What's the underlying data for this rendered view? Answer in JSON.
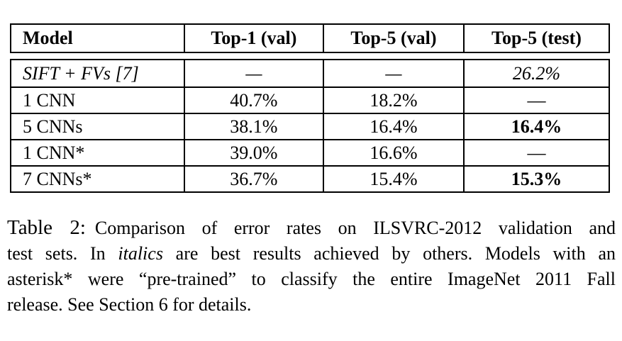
{
  "colors": {
    "background": "#ffffff",
    "text": "#000000",
    "table_border": "#000000"
  },
  "table": {
    "columns": [
      "Model",
      "Top-1 (val)",
      "Top-5 (val)",
      "Top-5 (test)"
    ],
    "rows": [
      {
        "model": "SIFT + FVs [7]",
        "top1_val": "—",
        "top5_val": "—",
        "top5_test": "26.2%"
      },
      {
        "model": "1 CNN",
        "top1_val": "40.7%",
        "top5_val": "18.2%",
        "top5_test": "—"
      },
      {
        "model": "5 CNNs",
        "top1_val": "38.1%",
        "top5_val": "16.4%",
        "top5_test": "16.4%"
      },
      {
        "model": "1 CNN*",
        "top1_val": "39.0%",
        "top5_val": "16.6%",
        "top5_test": "—"
      },
      {
        "model": "7 CNNs*",
        "top1_val": "36.7%",
        "top5_val": "15.4%",
        "top5_test": "15.3%"
      }
    ]
  },
  "caption": {
    "label": "Table 2:",
    "line1": "Comparison of error rates on ILSVRC-2012 validation and",
    "line2_pre": "test sets. In ",
    "line2_italic": "italics",
    "line2_post": " are best results achieved by others. Models with an",
    "line3": "asterisk* were “pre-trained” to classify the entire ImageNet 2011 Fall",
    "line4": "release. See Section 6 for details."
  }
}
